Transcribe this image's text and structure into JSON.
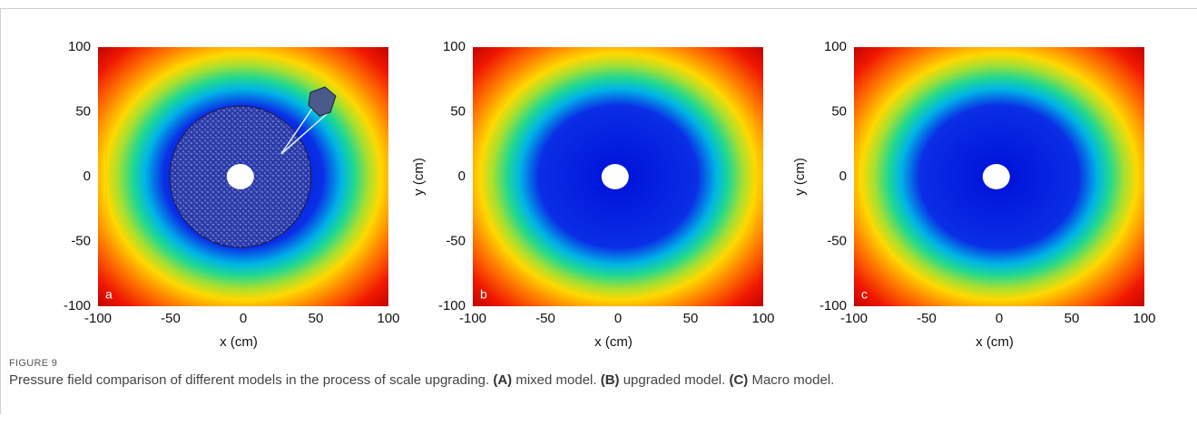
{
  "figure": {
    "label": "FIGURE 9",
    "caption": [
      "Pressure field comparison of different models in the process of scale upgrading. ",
      "(A)",
      " mixed model. ",
      "(B)",
      " upgraded model. ",
      "(C)",
      " Macro model."
    ],
    "panels": [
      {
        "letter": "a",
        "xlabel": "x (cm)",
        "xlim": [
          -100,
          100
        ],
        "ylim": [
          -100,
          100
        ],
        "xticks": [
          -100,
          -50,
          0,
          50,
          100
        ],
        "yticks": [
          100,
          50,
          0,
          -50,
          -100
        ]
      },
      {
        "letter": "b",
        "xlabel": "x (cm)",
        "ylabel": "y (cm)",
        "xlim": [
          -100,
          100
        ],
        "ylim": [
          -100,
          100
        ],
        "xticks": [
          -100,
          -50,
          0,
          50,
          100
        ],
        "yticks": [
          100,
          50,
          0,
          -50,
          -100
        ]
      },
      {
        "letter": "c",
        "xlabel": "x (cm)",
        "ylabel": "y (cm)",
        "xlim": [
          -100,
          100
        ],
        "ylim": [
          -100,
          100
        ],
        "xticks": [
          -100,
          -50,
          0,
          50,
          100
        ],
        "yticks": [
          100,
          50,
          0,
          -50,
          -100
        ]
      }
    ]
  }
}
